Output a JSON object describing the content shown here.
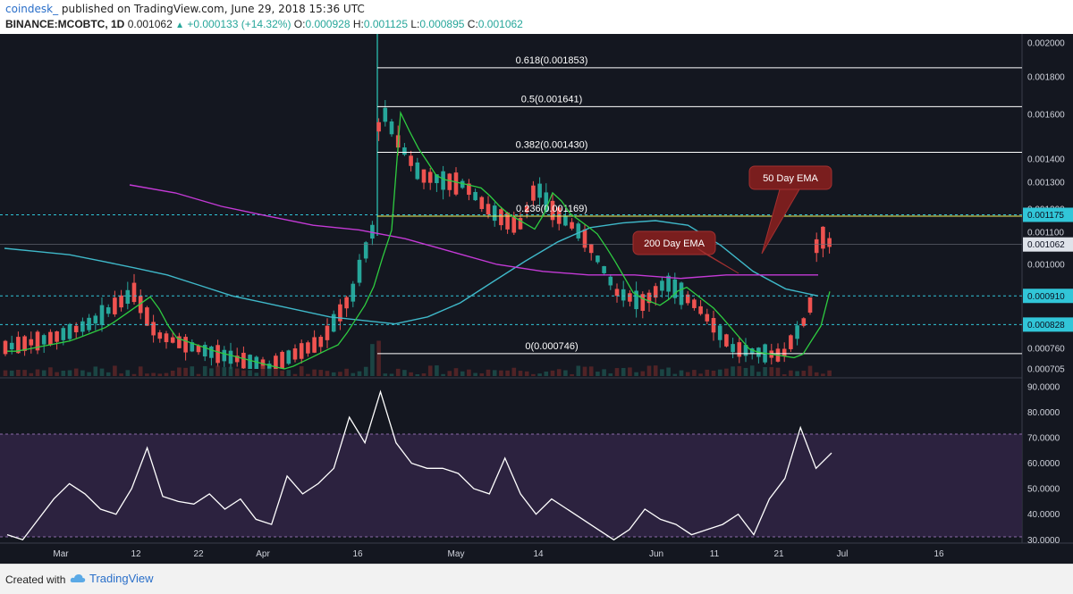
{
  "header": {
    "publisher": "coindesk_",
    "published_text": "published on TradingView.com, June 29, 2018 15:36 UTC",
    "symbol": "BINANCE:MCOBTC, 1D",
    "last": "0.001062",
    "change": "+0.000133 (+14.32%)",
    "ohlc": {
      "o_label": "O:",
      "o": "0.000928",
      "h_label": "H:",
      "h": "0.001125",
      "l_label": "L:",
      "l": "0.000895",
      "c_label": "C:",
      "c": "0.001062"
    }
  },
  "footer": {
    "created_with": "Created with",
    "brand": "TradingView"
  },
  "colors": {
    "background": "#141720",
    "up": "#26a69a",
    "down": "#ef5350",
    "ema50": "#3fb8c9",
    "ema200": "#c43ad6",
    "ema_short": "#2ecc40",
    "rsi": "#ffffff",
    "rsi_band": "#3a2a55",
    "fib": "#ffffff",
    "fib_yellow": "#f2f25a",
    "hline": "#31c6d8",
    "callout": "#7a1e1e"
  },
  "price_axis": {
    "ticks": [
      "0.002000",
      "0.001800",
      "0.001600",
      "0.001400",
      "0.001300",
      "0.001200",
      "0.001100",
      "0.001000",
      "0.000760",
      "0.000705"
    ],
    "badges": [
      {
        "label": "0.001175",
        "value": 0.001175,
        "style": "cyan"
      },
      {
        "label": "0.001062",
        "value": 0.001062,
        "style": "plain"
      },
      {
        "label": "0.000910",
        "value": 0.00091,
        "style": "cyan"
      },
      {
        "label": "0.000828",
        "value": 0.000828,
        "style": "cyan"
      }
    ]
  },
  "rsi_axis": {
    "ticks": [
      "90.0000",
      "80.0000",
      "70.0000",
      "60.0000",
      "50.0000",
      "40.0000",
      "30.0000"
    ]
  },
  "time_axis": {
    "labels": [
      "Mar",
      "12",
      "22",
      "Apr",
      "16",
      "May",
      "14",
      "Jun",
      "11",
      "21",
      "Jul",
      "16"
    ]
  },
  "fibonacci": [
    {
      "label": "0.618(0.001853)",
      "value": 0.001853
    },
    {
      "label": "0.5(0.001641)",
      "value": 0.001641
    },
    {
      "label": "0.382(0.001430)",
      "value": 0.00143
    },
    {
      "label": "0.236(0.001169)",
      "value": 0.001169
    },
    {
      "label": "0(0.000746)",
      "value": 0.000746
    }
  ],
  "annotations": [
    {
      "text": "50 Day EMA"
    },
    {
      "text": "200 Day EMA"
    }
  ],
  "chart_data": {
    "type": "line",
    "series": [
      {
        "name": "50 Day EMA",
        "values": [
          0.00105,
          0.00104,
          0.00103,
          0.00101,
          0.00099,
          0.00097,
          0.00094,
          0.00091,
          0.00089,
          0.00087,
          0.00085,
          0.00084,
          0.00083,
          0.00085,
          0.00089,
          0.00095,
          0.00101,
          0.00107,
          0.00112,
          0.00114,
          0.00115,
          0.00113,
          0.00106,
          0.00098,
          0.00093,
          0.00091
        ]
      },
      {
        "name": "200 Day EMA",
        "values": [
          0.00129,
          0.00126,
          0.00121,
          0.00117,
          0.00113,
          0.00111,
          0.00108,
          0.00104,
          0.001,
          0.00098,
          0.00097,
          0.00097,
          0.00096,
          0.00097,
          0.00097,
          0.00097
        ]
      }
    ],
    "rsi_values": [
      32,
      30,
      38,
      46,
      52,
      48,
      42,
      40,
      50,
      66,
      47,
      45,
      44,
      48,
      42,
      46,
      38,
      36,
      55,
      48,
      52,
      58,
      78,
      68,
      88,
      68,
      60,
      58,
      58,
      56,
      50,
      48,
      62,
      48,
      40,
      46,
      42,
      38,
      34,
      30,
      34,
      42,
      38,
      36,
      32,
      34,
      36,
      40,
      32,
      46,
      54,
      74,
      58,
      64
    ],
    "rsi_ylim": [
      28,
      91
    ]
  }
}
